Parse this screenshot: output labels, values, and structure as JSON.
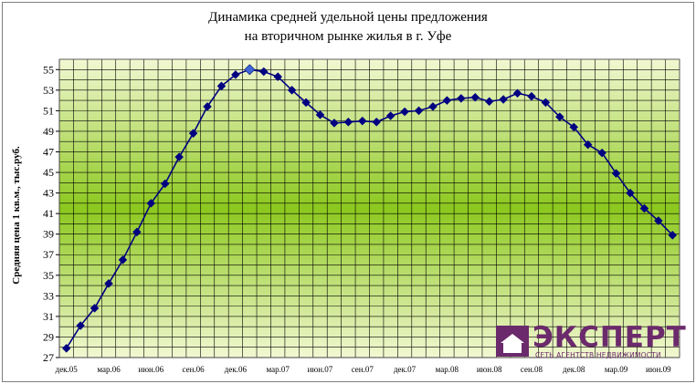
{
  "chart_data": {
    "type": "line",
    "title_lines": [
      "Динамика средней удельной цены предложения",
      "на вторичном рынке жилья в г. Уфе"
    ],
    "ylabel": "Средняя цена 1 кв.м., тыс.руб.",
    "xlabel": "",
    "ylim": [
      27,
      56
    ],
    "yticks": [
      27,
      29,
      31,
      33,
      35,
      37,
      39,
      41,
      43,
      45,
      47,
      49,
      51,
      53,
      55
    ],
    "x_tick_labels": [
      "дек.05",
      "мар.06",
      "июн.06",
      "сен.06",
      "дек.06",
      "мар.07",
      "июн.07",
      "сен.07",
      "дек.07",
      "мар.08",
      "июн.08",
      "сен.08",
      "дек.08",
      "мар.09",
      "июн.09"
    ],
    "x_tick_every_n_points": 3,
    "grid": true,
    "series": [
      {
        "values": [
          27.9,
          30.1,
          31.8,
          34.2,
          36.5,
          39.2,
          42.0,
          43.9,
          46.5,
          48.8,
          51.4,
          53.4,
          54.5,
          55.0,
          54.8,
          54.3,
          53.0,
          51.8,
          50.6,
          49.8,
          49.9,
          50.0,
          49.9,
          50.5,
          50.9,
          51.0,
          51.4,
          52.0,
          52.2,
          52.3,
          51.9,
          52.1,
          52.7,
          52.4,
          51.8,
          50.4,
          49.4,
          47.7,
          46.9,
          44.9,
          43.0,
          41.5,
          40.3,
          38.9
        ],
        "highlight_index": 13
      }
    ],
    "colors": {
      "line": "#000080",
      "marker": "#000080",
      "highlight_marker": "#3f66d9",
      "grid": "#000000",
      "bg_light": "#f2f8d2",
      "bg_mid": "#8cc81e"
    }
  },
  "logo": {
    "name": "ЭКСПЕРТ",
    "tagline": "СЕТЬ АГЕНТСТВ НЕДВИЖИМОСТИ",
    "color": "#6b2a6b"
  }
}
